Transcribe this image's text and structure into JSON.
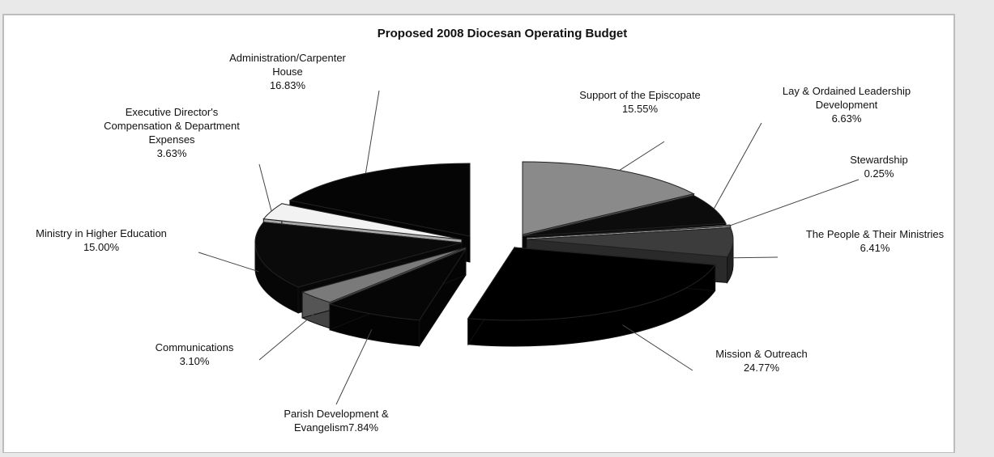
{
  "chart_data": {
    "type": "pie",
    "title": "Proposed 2008 Diocesan Operating Budget",
    "unit": "%",
    "legend": "none",
    "slices": [
      {
        "label": [
          "Support of the Episcopate",
          "15.55%"
        ],
        "value": 15.55,
        "color": "#8a8a8a"
      },
      {
        "label": [
          "Lay & Ordained Leadership",
          "Development",
          "6.63%"
        ],
        "value": 6.63,
        "color": "#0c0c0c"
      },
      {
        "label": [
          "Stewardship",
          "0.25%"
        ],
        "value": 0.25,
        "color": "#ffffff"
      },
      {
        "label": [
          "The People & Their Ministries",
          "6.41%"
        ],
        "value": 6.41,
        "color": "#3c3c3c"
      },
      {
        "label": [
          "Mission & Outreach",
          "24.77%"
        ],
        "value": 24.77,
        "color": "#000000"
      },
      {
        "label": [
          "Parish Development &",
          "Evangelism7.84%"
        ],
        "value": 7.84,
        "color": "#060606"
      },
      {
        "label": [
          "Communications",
          "3.10%"
        ],
        "value": 3.1,
        "color": "#7a7a7a"
      },
      {
        "label": [
          "Ministry in Higher Education",
          "15.00%"
        ],
        "value": 15.0,
        "color": "#0a0a0a"
      },
      {
        "label": [
          "Executive Director's",
          "Compensation & Department",
          "Expenses",
          "3.63%"
        ],
        "value": 3.63,
        "color": "#f2f2f2"
      },
      {
        "label": [
          "Administration/Carpenter",
          "House",
          "16.83%"
        ],
        "value": 16.83,
        "color": "#050505"
      }
    ]
  }
}
